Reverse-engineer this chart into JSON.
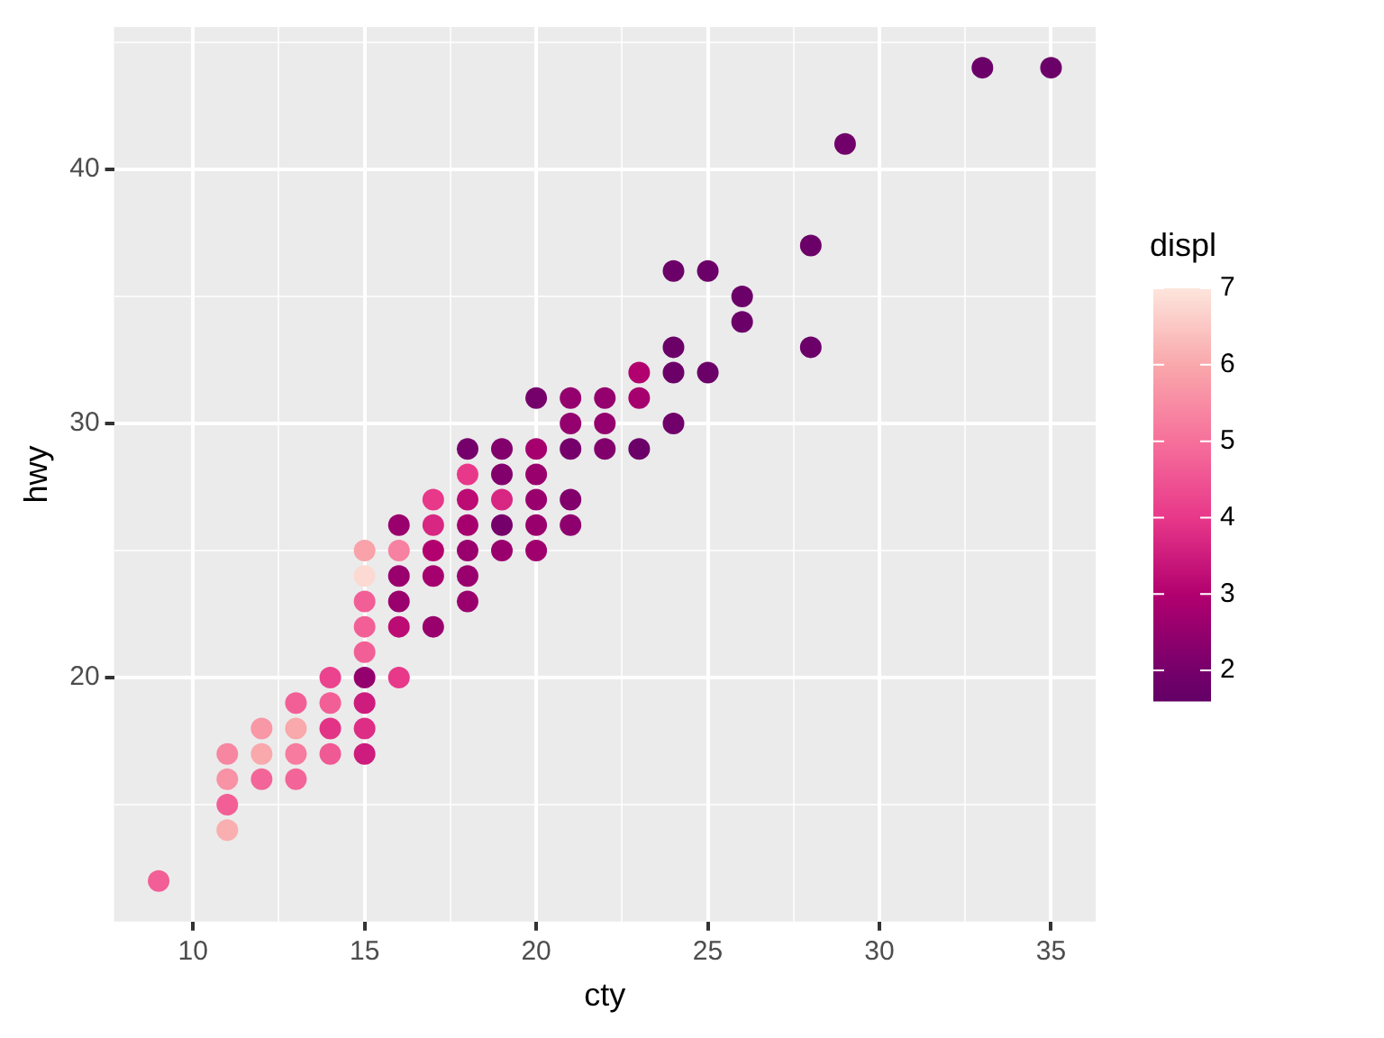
{
  "chart_data": {
    "type": "scatter",
    "xlabel": "cty",
    "ylabel": "hwy",
    "clabel": "displ",
    "marker": "circle",
    "grid": true,
    "x": [
      9,
      11,
      11,
      11,
      11,
      12,
      12,
      12,
      13,
      13,
      13,
      13,
      14,
      14,
      14,
      14,
      15,
      15,
      15,
      15,
      15,
      15,
      15,
      15,
      15,
      16,
      16,
      16,
      16,
      16,
      16,
      17,
      17,
      17,
      17,
      17,
      18,
      18,
      18,
      18,
      18,
      18,
      18,
      19,
      19,
      19,
      19,
      19,
      20,
      20,
      20,
      20,
      20,
      20,
      21,
      21,
      21,
      21,
      21,
      22,
      22,
      22,
      23,
      23,
      23,
      24,
      24,
      24,
      24,
      25,
      25,
      26,
      26,
      28,
      28,
      29,
      33,
      35
    ],
    "series": [
      {
        "values": [
          12,
          17,
          16,
          15,
          14,
          18,
          17,
          16,
          19,
          18,
          17,
          16,
          20,
          19,
          18,
          17,
          25,
          24,
          23,
          22,
          21,
          20,
          19,
          18,
          17,
          26,
          25,
          24,
          23,
          22,
          20,
          27,
          26,
          25,
          24,
          22,
          29,
          28,
          27,
          26,
          25,
          24,
          23,
          29,
          28,
          27,
          26,
          25,
          31,
          29,
          28,
          27,
          26,
          25,
          31,
          30,
          29,
          27,
          26,
          31,
          30,
          29,
          32,
          31,
          29,
          36,
          33,
          32,
          30,
          36,
          32,
          35,
          34,
          37,
          33,
          41,
          44,
          44
        ],
        "cvalues": [
          4.7,
          5.4,
          5.6,
          4.7,
          6.1,
          5.7,
          6.0,
          4.8,
          4.7,
          6.0,
          5.2,
          4.8,
          4.2,
          4.7,
          3.9,
          4.6,
          5.9,
          6.8,
          4.7,
          4.7,
          4.7,
          2.5,
          3.5,
          3.8,
          3.5,
          2.6,
          5.3,
          2.6,
          2.6,
          3.2,
          4.0,
          4.0,
          3.7,
          3.0,
          2.8,
          2.6,
          2.0,
          4.0,
          3.2,
          2.8,
          2.6,
          2.6,
          2.6,
          2.2,
          2.2,
          3.7,
          2.0,
          2.6,
          2.0,
          2.8,
          2.6,
          2.6,
          2.6,
          2.7,
          2.5,
          2.5,
          2.0,
          2.2,
          2.4,
          2.5,
          2.5,
          2.2,
          3.0,
          2.8,
          1.8,
          1.8,
          1.8,
          1.8,
          1.9,
          1.8,
          1.8,
          1.8,
          1.8,
          1.8,
          1.8,
          1.9,
          1.8,
          1.8
        ]
      }
    ],
    "xlim": [
      7.7,
      36.3
    ],
    "ylim": [
      10.4,
      45.6
    ],
    "xticks": [
      10,
      {
        "value": 12.5,
        "label": null
      },
      15,
      {
        "value": 17.5,
        "label": null
      },
      20,
      {
        "value": 22.5,
        "label": null
      },
      25,
      {
        "value": 27.5,
        "label": null
      },
      30,
      {
        "value": 32.5,
        "label": null
      },
      35
    ],
    "yticks": [
      {
        "value": 15,
        "label": null
      },
      20,
      {
        "value": 25,
        "label": null
      },
      30,
      {
        "value": 35,
        "label": null
      },
      40,
      {
        "value": 45,
        "label": null
      }
    ],
    "clim": [
      1.6,
      7
    ],
    "cticks": [
      2,
      3,
      4,
      5,
      6,
      7
    ]
  }
}
